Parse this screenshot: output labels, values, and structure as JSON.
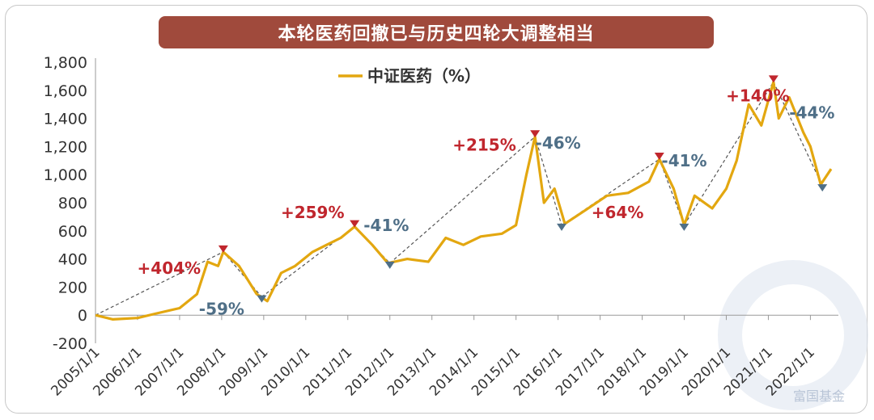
{
  "title": "本轮医药回撤已与历史四轮大调整相当",
  "watermark": "富国基金",
  "colors": {
    "line": "#e3a710",
    "up": "#c0262d",
    "down": "#4f6f87",
    "banner": "#a04a3c"
  },
  "chart_data": {
    "type": "line",
    "series": [
      {
        "name": "中证医药（%）",
        "x": [
          "2005/1/1",
          "2005/6/1",
          "2006/1/1",
          "2006/6/1",
          "2007/1/1",
          "2007/6/1",
          "2007/9/1",
          "2007/12/1",
          "2008/1/15",
          "2008/6/1",
          "2008/11/1",
          "2009/2/1",
          "2009/6/1",
          "2009/10/1",
          "2010/3/1",
          "2010/7/1",
          "2010/11/1",
          "2011/3/1",
          "2011/8/1",
          "2011/12/15",
          "2012/6/1",
          "2012/12/1",
          "2013/5/1",
          "2013/10/1",
          "2014/3/1",
          "2014/9/1",
          "2015/1/1",
          "2015/4/1",
          "2015/6/15",
          "2015/9/1",
          "2015/12/1",
          "2016/3/1",
          "2016/9/1",
          "2017/3/1",
          "2017/9/1",
          "2018/3/1",
          "2018/5/30",
          "2018/10/1",
          "2018/12/31",
          "2019/4/1",
          "2019/9/1",
          "2020/1/1",
          "2020/4/1",
          "2020/7/15",
          "2020/11/1",
          "2021/2/15",
          "2021/4/1",
          "2021/7/1",
          "2021/11/1",
          "2022/1/1",
          "2022/4/1",
          "2022/6/30"
        ],
        "values": [
          0,
          -30,
          -20,
          10,
          50,
          150,
          380,
          350,
          450,
          350,
          150,
          100,
          300,
          350,
          450,
          500,
          550,
          630,
          500,
          370,
          400,
          380,
          550,
          500,
          560,
          580,
          640,
          1000,
          1270,
          800,
          900,
          650,
          750,
          850,
          870,
          950,
          1110,
          900,
          640,
          850,
          760,
          900,
          1100,
          1500,
          1350,
          1660,
          1400,
          1550,
          1300,
          1200,
          930,
          1040
        ]
      }
    ],
    "xticks": [
      "2005/1/1",
      "2006/1/1",
      "2007/1/1",
      "2008/1/1",
      "2009/1/1",
      "2010/1/1",
      "2011/1/1",
      "2012/1/1",
      "2013/1/1",
      "2014/1/1",
      "2015/1/1",
      "2016/1/1",
      "2017/1/1",
      "2018/1/1",
      "2019/1/1",
      "2020/1/1",
      "2021/1/1",
      "2022/1/1"
    ],
    "yticks": [
      -200,
      0,
      200,
      400,
      600,
      800,
      1000,
      1200,
      1400,
      1600,
      1800
    ],
    "ytick_labels": [
      "-200",
      "0",
      "200",
      "400",
      "600",
      "800",
      "1,000",
      "1,200",
      "1,400",
      "1,600",
      "1,800"
    ],
    "ylim": [
      -200,
      1800
    ],
    "xlim": [
      "2005/1/1",
      "2022/9/1"
    ],
    "legend": "top-left",
    "grid": false,
    "trendlines": [
      {
        "from": [
          "2005/1/1",
          0
        ],
        "to": [
          "2008/1/15",
          450
        ]
      },
      {
        "from": [
          "2008/1/15",
          450
        ],
        "to": [
          "2008/12/15",
          130
        ]
      },
      {
        "from": [
          "2008/12/15",
          130
        ],
        "to": [
          "2011/3/1",
          630
        ]
      },
      {
        "from": [
          "2011/3/1",
          630
        ],
        "to": [
          "2012/1/1",
          370
        ]
      },
      {
        "from": [
          "2012/1/1",
          370
        ],
        "to": [
          "2015/6/15",
          1270
        ]
      },
      {
        "from": [
          "2015/6/15",
          1270
        ],
        "to": [
          "2016/2/1",
          640
        ]
      },
      {
        "from": [
          "2016/2/1",
          640
        ],
        "to": [
          "2018/5/30",
          1110
        ]
      },
      {
        "from": [
          "2018/5/30",
          1110
        ],
        "to": [
          "2018/12/31",
          640
        ]
      },
      {
        "from": [
          "2018/12/31",
          640
        ],
        "to": [
          "2021/2/15",
          1660
        ]
      },
      {
        "from": [
          "2021/2/15",
          1660
        ],
        "to": [
          "2022/4/15",
          920
        ]
      }
    ],
    "peaks": [
      [
        "2008/1/15",
        450
      ],
      [
        "2011/3/1",
        630
      ],
      [
        "2015/6/15",
        1270
      ],
      [
        "2018/5/30",
        1110
      ],
      [
        "2021/2/15",
        1660
      ]
    ],
    "troughs": [
      [
        "2008/12/15",
        130
      ],
      [
        "2012/1/1",
        370
      ],
      [
        "2016/2/1",
        640
      ],
      [
        "2018/12/31",
        640
      ],
      [
        "2022/4/15",
        920
      ]
    ],
    "annotations": [
      {
        "text": "+404%",
        "kind": "up",
        "x": "2006/10/1",
        "y": 295
      },
      {
        "text": "-59%",
        "kind": "down",
        "x": "2008/1/1",
        "y": 5
      },
      {
        "text": "+259%",
        "kind": "up",
        "x": "2010/3/1",
        "y": 690
      },
      {
        "text": "-41%",
        "kind": "down",
        "x": "2011/12/1",
        "y": 600
      },
      {
        "text": "+215%",
        "kind": "up",
        "x": "2014/4/1",
        "y": 1170
      },
      {
        "text": "-46%",
        "kind": "down",
        "x": "2016/1/1",
        "y": 1185
      },
      {
        "text": "+64%",
        "kind": "up",
        "x": "2017/6/1",
        "y": 690
      },
      {
        "text": "-41%",
        "kind": "down",
        "x": "2019/1/1",
        "y": 1060
      },
      {
        "text": "+140%",
        "kind": "up",
        "x": "2020/10/1",
        "y": 1520
      },
      {
        "text": "-44%",
        "kind": "down",
        "x": "2022/1/15",
        "y": 1400
      }
    ]
  }
}
